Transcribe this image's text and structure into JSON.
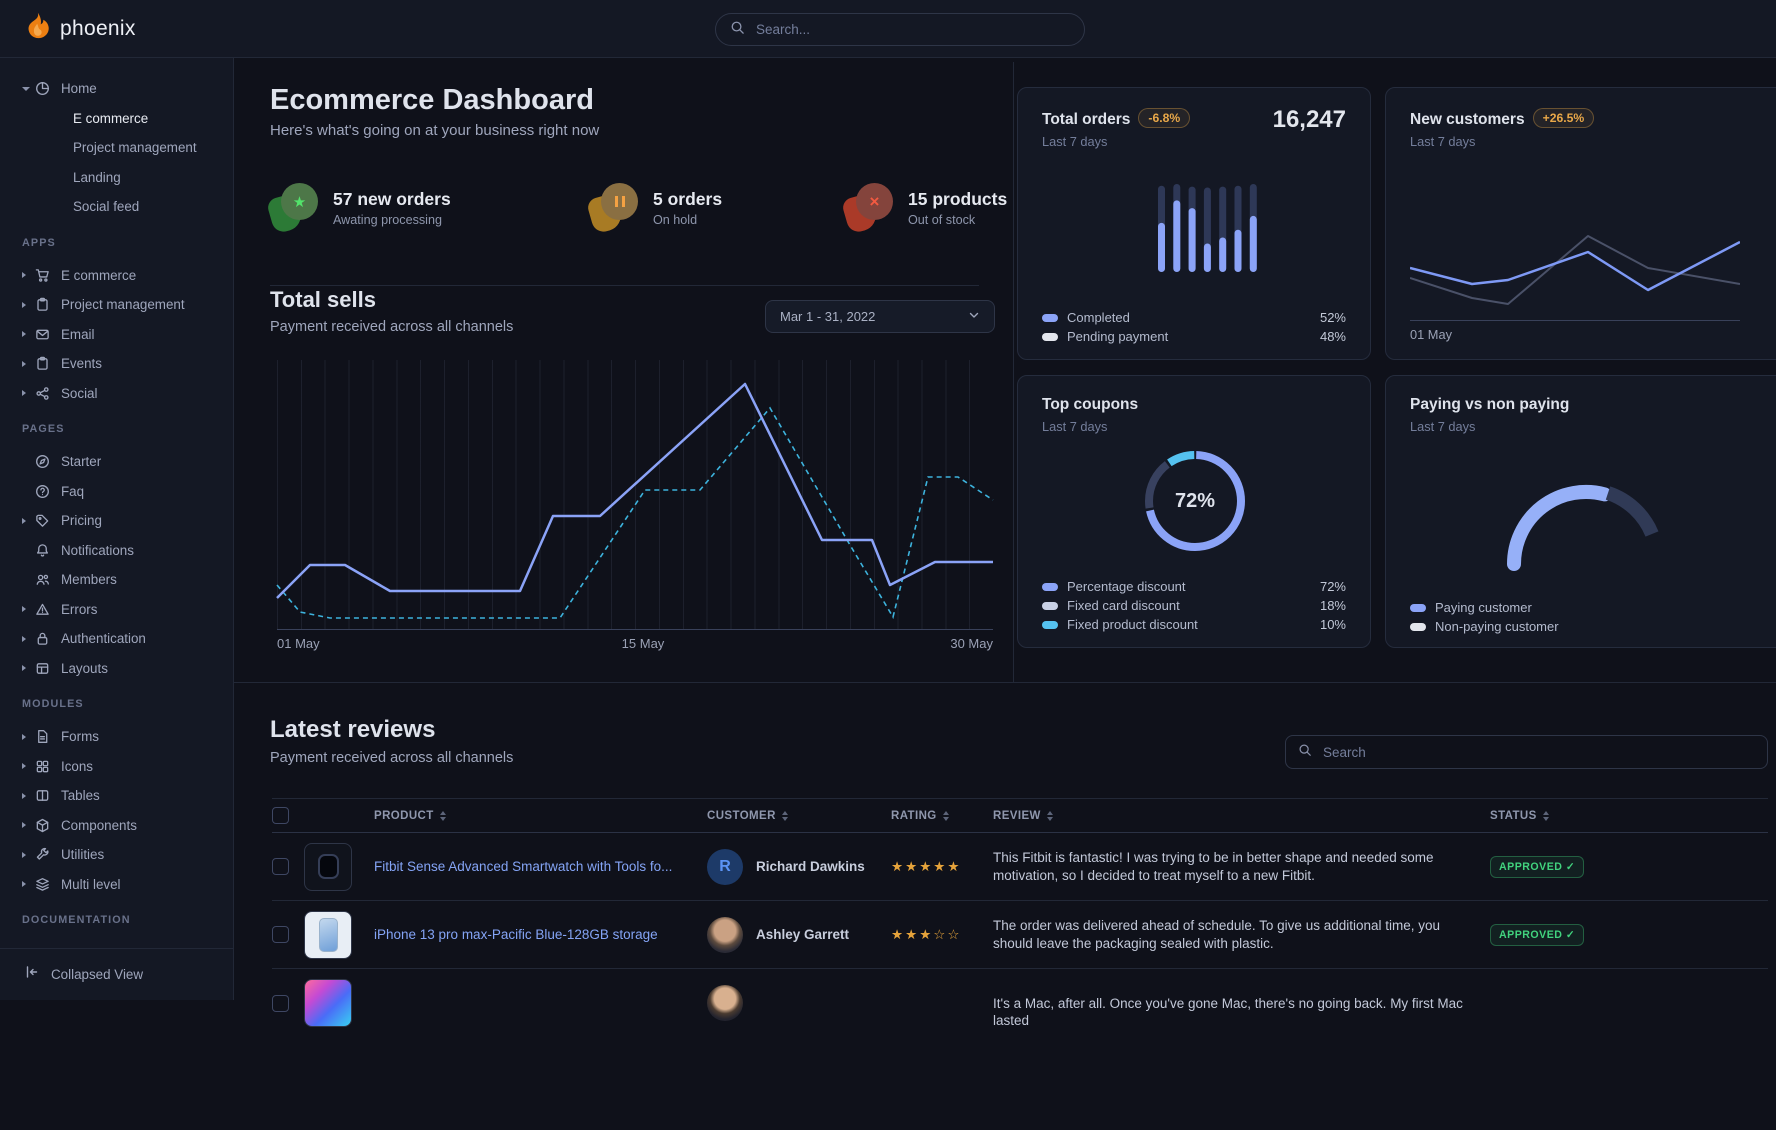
{
  "colors": {
    "primary_line": "#8ba3f7",
    "dashed_line": "#3db3dd",
    "bar_dark": "#2e3857",
    "warning_badge": "#e9a849",
    "success": "#41d37e",
    "link": "#84a4f5"
  },
  "navbar": {
    "brand": "phoenix",
    "search_placeholder": "Search..."
  },
  "sidebar": {
    "home_label": "Home",
    "home_children": [
      "E commerce",
      "Project management",
      "Landing",
      "Social feed"
    ],
    "sections": [
      {
        "title": "APPS",
        "items": [
          {
            "label": "E commerce",
            "icon": "cart",
            "caret": true
          },
          {
            "label": "Project management",
            "icon": "clipboard",
            "caret": true
          },
          {
            "label": "Email",
            "icon": "envelope",
            "caret": true
          },
          {
            "label": "Events",
            "icon": "clipboard",
            "caret": true
          },
          {
            "label": "Social",
            "icon": "share",
            "caret": true
          }
        ]
      },
      {
        "title": "PAGES",
        "items": [
          {
            "label": "Starter",
            "icon": "compass",
            "caret": false
          },
          {
            "label": "Faq",
            "icon": "question-circle",
            "caret": false
          },
          {
            "label": "Pricing",
            "icon": "tag",
            "caret": true
          },
          {
            "label": "Notifications",
            "icon": "bell",
            "caret": false
          },
          {
            "label": "Members",
            "icon": "users",
            "caret": false
          },
          {
            "label": "Errors",
            "icon": "warning-triangle",
            "caret": true
          },
          {
            "label": "Authentication",
            "icon": "lock",
            "caret": true
          },
          {
            "label": "Layouts",
            "icon": "layout",
            "caret": true
          }
        ]
      },
      {
        "title": "MODULES",
        "items": [
          {
            "label": "Forms",
            "icon": "file",
            "caret": true
          },
          {
            "label": "Icons",
            "icon": "grid",
            "caret": true
          },
          {
            "label": "Tables",
            "icon": "columns",
            "caret": true
          },
          {
            "label": "Components",
            "icon": "box",
            "caret": true
          },
          {
            "label": "Utilities",
            "icon": "wrench",
            "caret": true
          },
          {
            "label": "Multi level",
            "icon": "layers",
            "caret": true
          }
        ]
      },
      {
        "title": "DOCUMENTATION",
        "items": []
      }
    ],
    "collapse_label": "Collapsed View"
  },
  "header": {
    "title": "Ecommerce Dashboard",
    "subtitle": "Here's what's going on at your business right now"
  },
  "stats": [
    {
      "title": "57 new orders",
      "caption": "Awating processing",
      "icon": "star"
    },
    {
      "title": "5 orders",
      "caption": "On hold",
      "icon": "pause"
    },
    {
      "title": "15 products",
      "caption": "Out of stock",
      "icon": "x"
    }
  ],
  "total_sells": {
    "title": "Total sells",
    "subtitle": "Payment received across all channels",
    "date_range": "Mar 1 - 31, 2022",
    "x_labels": [
      "01 May",
      "15 May",
      "30 May"
    ]
  },
  "chart_data": [
    {
      "id": "total_sells_line",
      "type": "line",
      "x_axis_labels": [
        "01 May",
        "15 May",
        "30 May"
      ],
      "grid": "vertical",
      "series": [
        {
          "name": "current",
          "style": "solid",
          "color": "#8ba3f7",
          "points": [
            [
              0,
              238
            ],
            [
              33,
              205
            ],
            [
              68,
              205
            ],
            [
              113,
              231
            ],
            [
              243,
              231
            ],
            [
              276,
              156
            ],
            [
              323,
              156
            ],
            [
              468,
              24
            ],
            [
              545,
              180
            ],
            [
              595,
              180
            ],
            [
              613,
              225
            ],
            [
              658,
              202
            ],
            [
              716,
              202
            ]
          ]
        },
        {
          "name": "previous",
          "style": "dashed",
          "color": "#3db3dd",
          "points": [
            [
              0,
              225
            ],
            [
              23,
              252
            ],
            [
              53,
              258
            ],
            [
              283,
              258
            ],
            [
              368,
              130
            ],
            [
              423,
              130
            ],
            [
              493,
              48
            ],
            [
              573,
              185
            ],
            [
              616,
              257
            ],
            [
              651,
              117
            ],
            [
              681,
              117
            ],
            [
              716,
              140
            ]
          ]
        }
      ]
    },
    {
      "id": "total_orders_bars",
      "type": "bar",
      "series": [
        {
          "name": "Completed",
          "color": "#8ba3f7",
          "values": [
            57,
            83,
            74,
            33,
            40,
            49,
            65
          ]
        },
        {
          "name": "Pending payment",
          "color": "#2e3857",
          "values": [
            43,
            19,
            25,
            65,
            59,
            51,
            37
          ]
        }
      ]
    },
    {
      "id": "new_customers_line",
      "type": "line",
      "x_axis_labels": [
        "01 May"
      ],
      "series": [
        {
          "name": "previous",
          "color": "#4a5168",
          "points": [
            [
              0,
              52
            ],
            [
              62,
              72
            ],
            [
              98,
              78
            ],
            [
              178,
              10
            ],
            [
              238,
              42
            ],
            [
              330,
              58
            ]
          ]
        },
        {
          "name": "current",
          "color": "#7e99f5",
          "points": [
            [
              0,
              42
            ],
            [
              62,
              58
            ],
            [
              98,
              54
            ],
            [
              178,
              26
            ],
            [
              238,
              64
            ],
            [
              330,
              16
            ]
          ]
        }
      ]
    },
    {
      "id": "top_coupons_donut",
      "type": "pie",
      "center_label": "72%",
      "slices": [
        {
          "label": "Percentage discount",
          "value": 72
        },
        {
          "label": "Fixed card discount",
          "value": 18
        },
        {
          "label": "Fixed product discount",
          "value": 10
        }
      ]
    },
    {
      "id": "paying_gauge",
      "type": "gauge",
      "slices": [
        {
          "label": "Paying customer"
        },
        {
          "label": "Non-paying customer"
        }
      ]
    }
  ],
  "cards": {
    "total_orders": {
      "title": "Total orders",
      "badge": "-6.8%",
      "period": "Last 7 days",
      "value": "16,247",
      "legend": [
        {
          "label": "Completed",
          "value": "52%",
          "color": "#8ba3f7"
        },
        {
          "label": "Pending payment",
          "value": "48%",
          "color": "#e3e6ed"
        }
      ]
    },
    "new_customers": {
      "title": "New customers",
      "badge": "+26.5%",
      "period": "Last 7 days",
      "x_label": "01 May"
    },
    "top_coupons": {
      "title": "Top coupons",
      "period": "Last 7 days",
      "center_value": "72%",
      "segments": [
        {
          "label": "Percentage discount",
          "value": 72,
          "display": "72%",
          "donut_color": "#8ba3f7",
          "swatch_color": "#8ba3f7"
        },
        {
          "label": "Fixed card discount",
          "value": 18,
          "display": "18%",
          "donut_color": "#38415f",
          "swatch_color": "#c9d1e5"
        },
        {
          "label": "Fixed product discount",
          "value": 10,
          "display": "10%",
          "donut_color": "#55c2f0",
          "swatch_color": "#55c2f0"
        }
      ]
    },
    "paying": {
      "title": "Paying vs non paying",
      "period": "Last 7 days",
      "gauge": {
        "paying_color": "#96b0f8",
        "non_paying_color": "#303a56"
      },
      "legend": [
        {
          "label": "Paying customer",
          "color": "#8ba3f7"
        },
        {
          "label": "Non-paying customer",
          "color": "#e3e6ed"
        }
      ]
    }
  },
  "reviews": {
    "title": "Latest reviews",
    "subtitle": "Payment received across all channels",
    "search_placeholder": "Search",
    "check_glyph": "✓",
    "columns": [
      "PRODUCT",
      "CUSTOMER",
      "RATING",
      "REVIEW",
      "STATUS"
    ],
    "rows": [
      {
        "product": "Fitbit Sense Advanced Smartwatch with Tools fo...",
        "customer": "Richard Dawkins",
        "avatar_initial": "R",
        "stars": "★★★★★",
        "review": "This Fitbit is fantastic! I was trying to be in better shape and needed some motivation, so I decided to treat myself to a new Fitbit.",
        "status": "APPROVED"
      },
      {
        "product": "iPhone 13 pro max-Pacific Blue-128GB storage",
        "customer": "Ashley Garrett",
        "stars": "★★★☆☆",
        "review": "The order was delivered ahead of schedule. To give us additional time, you should leave the packaging sealed with plastic.",
        "status": "APPROVED"
      },
      {
        "review": "It's a Mac, after all. Once you've gone Mac, there's no going back. My first Mac lasted"
      }
    ]
  }
}
